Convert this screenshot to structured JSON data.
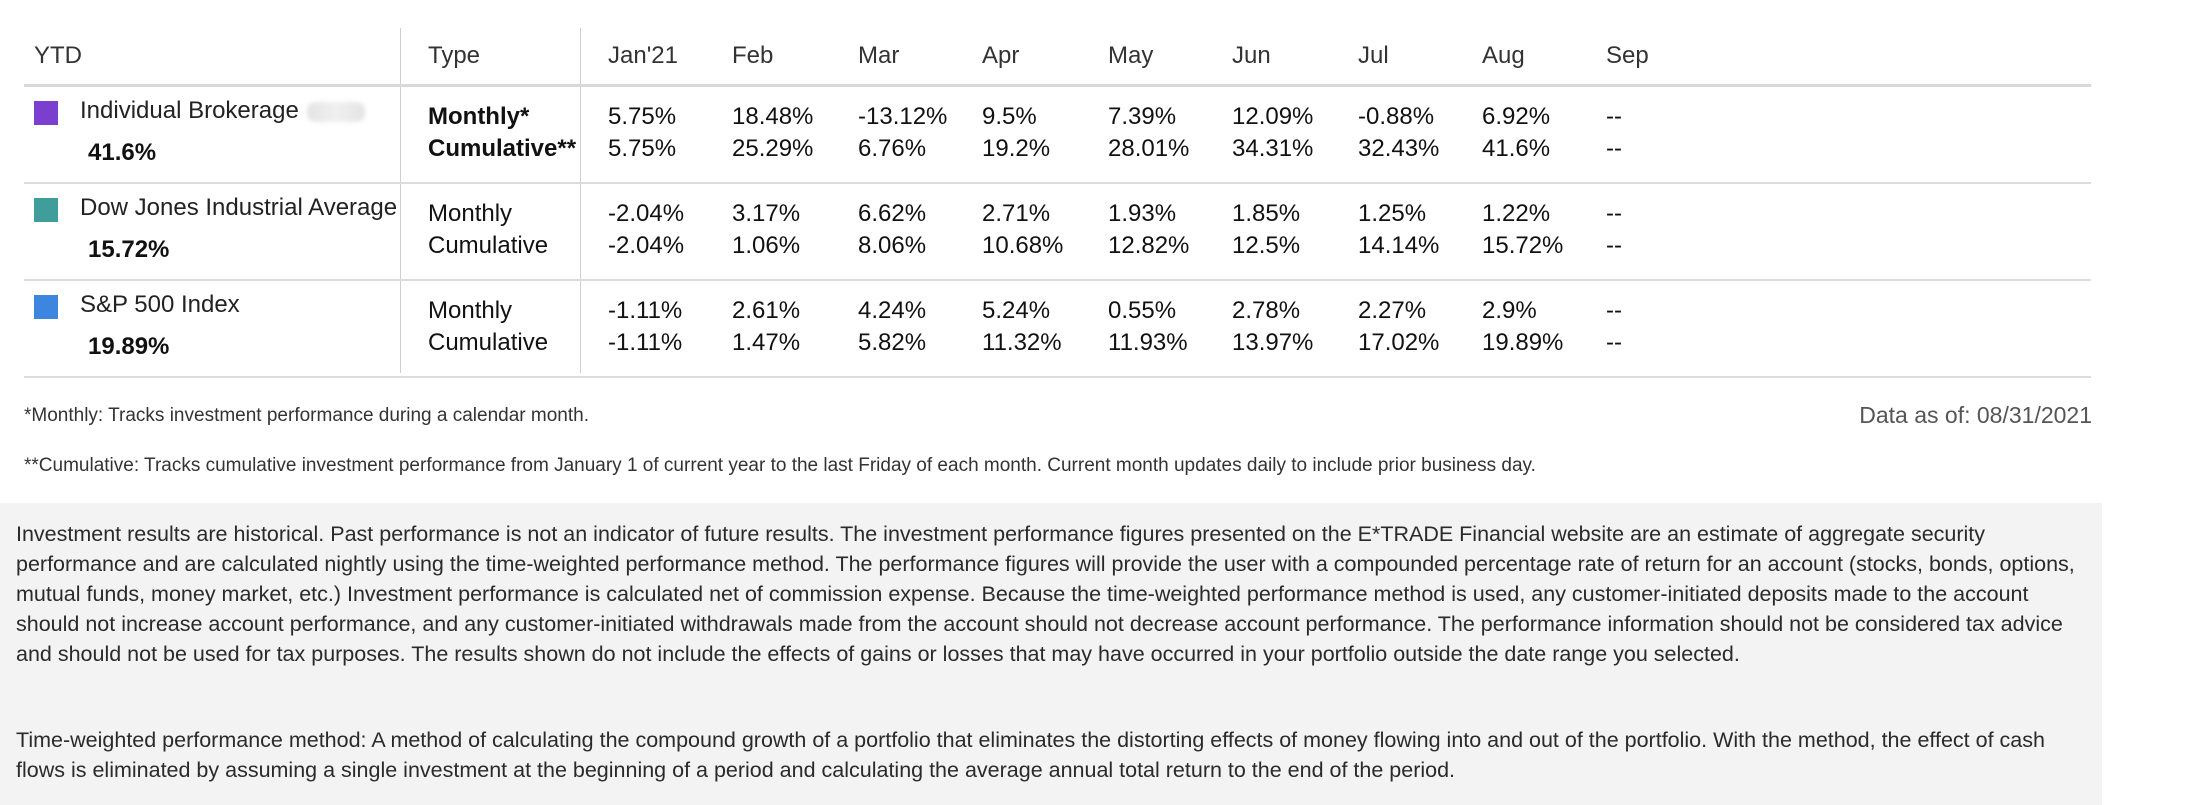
{
  "table": {
    "headers": {
      "ytd": "YTD",
      "type": "Type",
      "months": [
        "Jan'21",
        "Feb",
        "Mar",
        "Apr",
        "May",
        "Jun",
        "Jul",
        "Aug",
        "Sep"
      ]
    },
    "rows": [
      {
        "name": "Individual Brokerage",
        "ytd": "41.6%",
        "color": "#7b3fd0",
        "type1": "Monthly*",
        "type2": "Cumulative**",
        "monthly": [
          "5.75%",
          "18.48%",
          "-13.12%",
          "9.5%",
          "7.39%",
          "12.09%",
          "-0.88%",
          "6.92%",
          "--"
        ],
        "cumulative": [
          "5.75%",
          "25.29%",
          "6.76%",
          "19.2%",
          "28.01%",
          "34.31%",
          "32.43%",
          "41.6%",
          "--"
        ]
      },
      {
        "name": "Dow Jones Industrial Average",
        "ytd": "15.72%",
        "color": "#3f9d9a",
        "type1": "Monthly",
        "type2": "Cumulative",
        "monthly": [
          "-2.04%",
          "3.17%",
          "6.62%",
          "2.71%",
          "1.93%",
          "1.85%",
          "1.25%",
          "1.22%",
          "--"
        ],
        "cumulative": [
          "-2.04%",
          "1.06%",
          "8.06%",
          "10.68%",
          "12.82%",
          "12.5%",
          "14.14%",
          "15.72%",
          "--"
        ]
      },
      {
        "name": "S&P 500 Index",
        "ytd": "19.89%",
        "color": "#3d86e0",
        "type1": "Monthly",
        "type2": "Cumulative",
        "monthly": [
          "-1.11%",
          "2.61%",
          "4.24%",
          "5.24%",
          "0.55%",
          "2.78%",
          "2.27%",
          "2.9%",
          "--"
        ],
        "cumulative": [
          "-1.11%",
          "1.47%",
          "5.82%",
          "11.32%",
          "11.93%",
          "13.97%",
          "17.02%",
          "19.89%",
          "--"
        ]
      }
    ]
  },
  "notes": {
    "monthly": "*Monthly: Tracks investment performance during a calendar month.",
    "cumulative": "**Cumulative: Tracks cumulative investment performance from January 1 of current year to the last Friday of each month. Current month updates daily to include prior business day.",
    "as_of": "Data as of: 08/31/2021"
  },
  "disclaimer": {
    "p1": "Investment results are historical. Past performance is not an indicator of future results. The investment performance figures presented on the E*TRADE Financial website are an estimate of aggregate security performance and are calculated nightly using the time-weighted performance method. The performance figures will provide the user with a compounded percentage rate of return for an account (stocks, bonds, options, mutual funds, money market, etc.) Investment performance is calculated net of commission expense. Because the time-weighted performance method is used, any customer-initiated deposits made to the account should not increase account performance, and any customer-initiated withdrawals made from the account should not decrease account performance. The performance information should not be considered tax advice and should not be used for tax purposes. The results shown do not include the effects of gains or losses that may have occurred in your portfolio outside the date range you selected.",
    "p2": "Time-weighted performance method: A method of calculating the compound growth of a portfolio that eliminates the distorting effects of money flowing into and out of the portfolio. With the method, the effect of cash flows is eliminated by assuming a single investment at the beginning of a period and calculating the average annual total return to the end of the period."
  }
}
